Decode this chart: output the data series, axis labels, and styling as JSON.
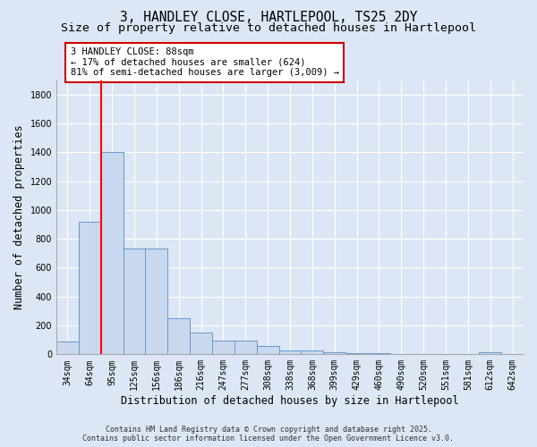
{
  "title_line1": "3, HANDLEY CLOSE, HARTLEPOOL, TS25 2DY",
  "title_line2": "Size of property relative to detached houses in Hartlepool",
  "xlabel": "Distribution of detached houses by size in Hartlepool",
  "ylabel": "Number of detached properties",
  "categories": [
    "34sqm",
    "64sqm",
    "95sqm",
    "125sqm",
    "156sqm",
    "186sqm",
    "216sqm",
    "247sqm",
    "277sqm",
    "308sqm",
    "338sqm",
    "368sqm",
    "399sqm",
    "429sqm",
    "460sqm",
    "490sqm",
    "520sqm",
    "551sqm",
    "581sqm",
    "612sqm",
    "642sqm"
  ],
  "values": [
    88,
    920,
    1400,
    730,
    730,
    248,
    148,
    95,
    95,
    55,
    25,
    25,
    15,
    10,
    10,
    5,
    0,
    0,
    0,
    15,
    0
  ],
  "bar_color": "#c9d8ee",
  "bar_edgecolor": "#6699cc",
  "ylim": [
    0,
    1900
  ],
  "yticks": [
    0,
    200,
    400,
    600,
    800,
    1000,
    1200,
    1400,
    1600,
    1800
  ],
  "red_line_x": 1.5,
  "annotation_text": "3 HANDLEY CLOSE: 88sqm\n← 17% of detached houses are smaller (624)\n81% of semi-detached houses are larger (3,009) →",
  "annotation_box_color": "#ffffff",
  "annotation_box_edgecolor": "#cc0000",
  "footnote_line1": "Contains HM Land Registry data © Crown copyright and database right 2025.",
  "footnote_line2": "Contains public sector information licensed under the Open Government Licence v3.0.",
  "fig_background_color": "#dce6f5",
  "plot_background": "#dce6f5",
  "grid_color": "#ffffff",
  "title_fontsize": 10.5,
  "subtitle_fontsize": 9.5,
  "tick_fontsize": 7,
  "ylabel_fontsize": 8.5,
  "xlabel_fontsize": 8.5,
  "annot_fontsize": 7.5,
  "footnote_fontsize": 6.0
}
